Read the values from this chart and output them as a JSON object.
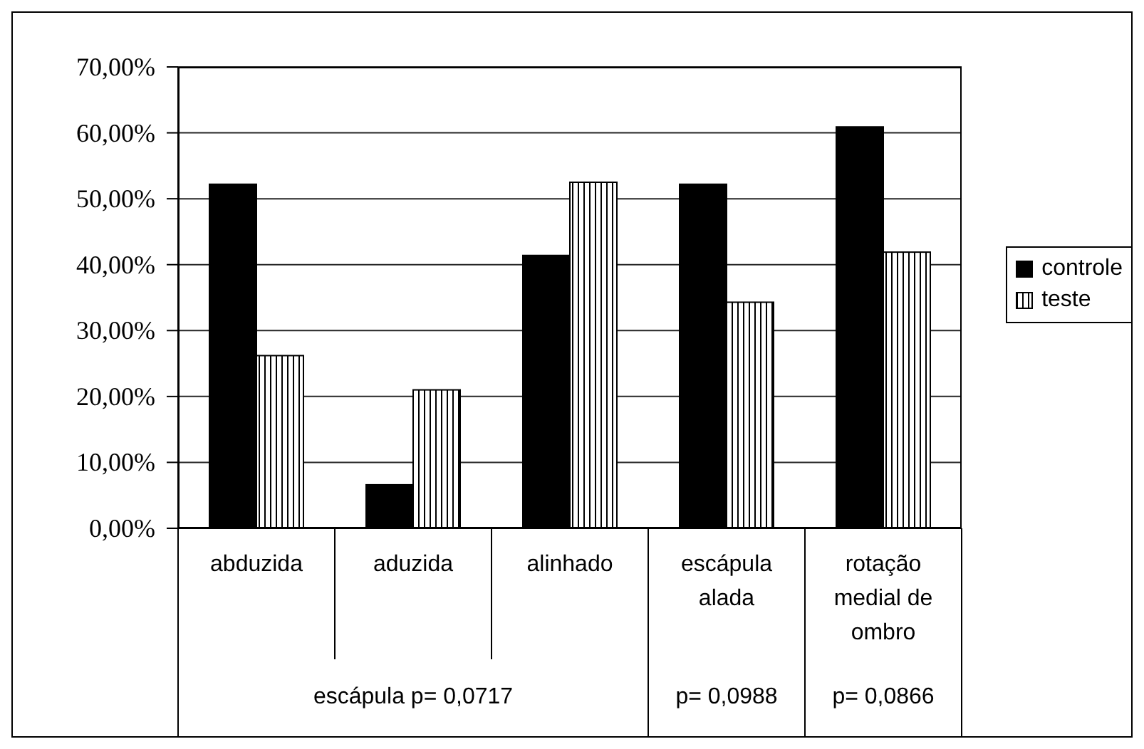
{
  "chart_data": {
    "type": "bar",
    "categories": [
      "abduzida",
      "aduzida",
      "alinhado",
      "escápula alada",
      "rotação medial de ombro"
    ],
    "series": [
      {
        "name": "controle",
        "color": "#000000",
        "values": [
          52.2,
          6.6,
          41.4,
          52.2,
          60.9
        ]
      },
      {
        "name": "teste",
        "color": "#ffffff",
        "values": [
          26.2,
          21.0,
          52.5,
          34.3,
          41.9
        ]
      }
    ],
    "ylim": [
      0,
      70
    ],
    "yticks": [
      {
        "value": 0,
        "label": "0,00%"
      },
      {
        "value": 10,
        "label": "10,00%"
      },
      {
        "value": 20,
        "label": "20,00%"
      },
      {
        "value": 30,
        "label": "30,00%"
      },
      {
        "value": 40,
        "label": "40,00%"
      },
      {
        "value": 50,
        "label": "50,00%"
      },
      {
        "value": 60,
        "label": "60,00%"
      },
      {
        "value": 70,
        "label": "70,00%"
      }
    ],
    "grid": "y",
    "legend": "right",
    "annotations": [
      "escápula p= 0,0717",
      "p= 0,0988",
      "p= 0,0866"
    ]
  }
}
